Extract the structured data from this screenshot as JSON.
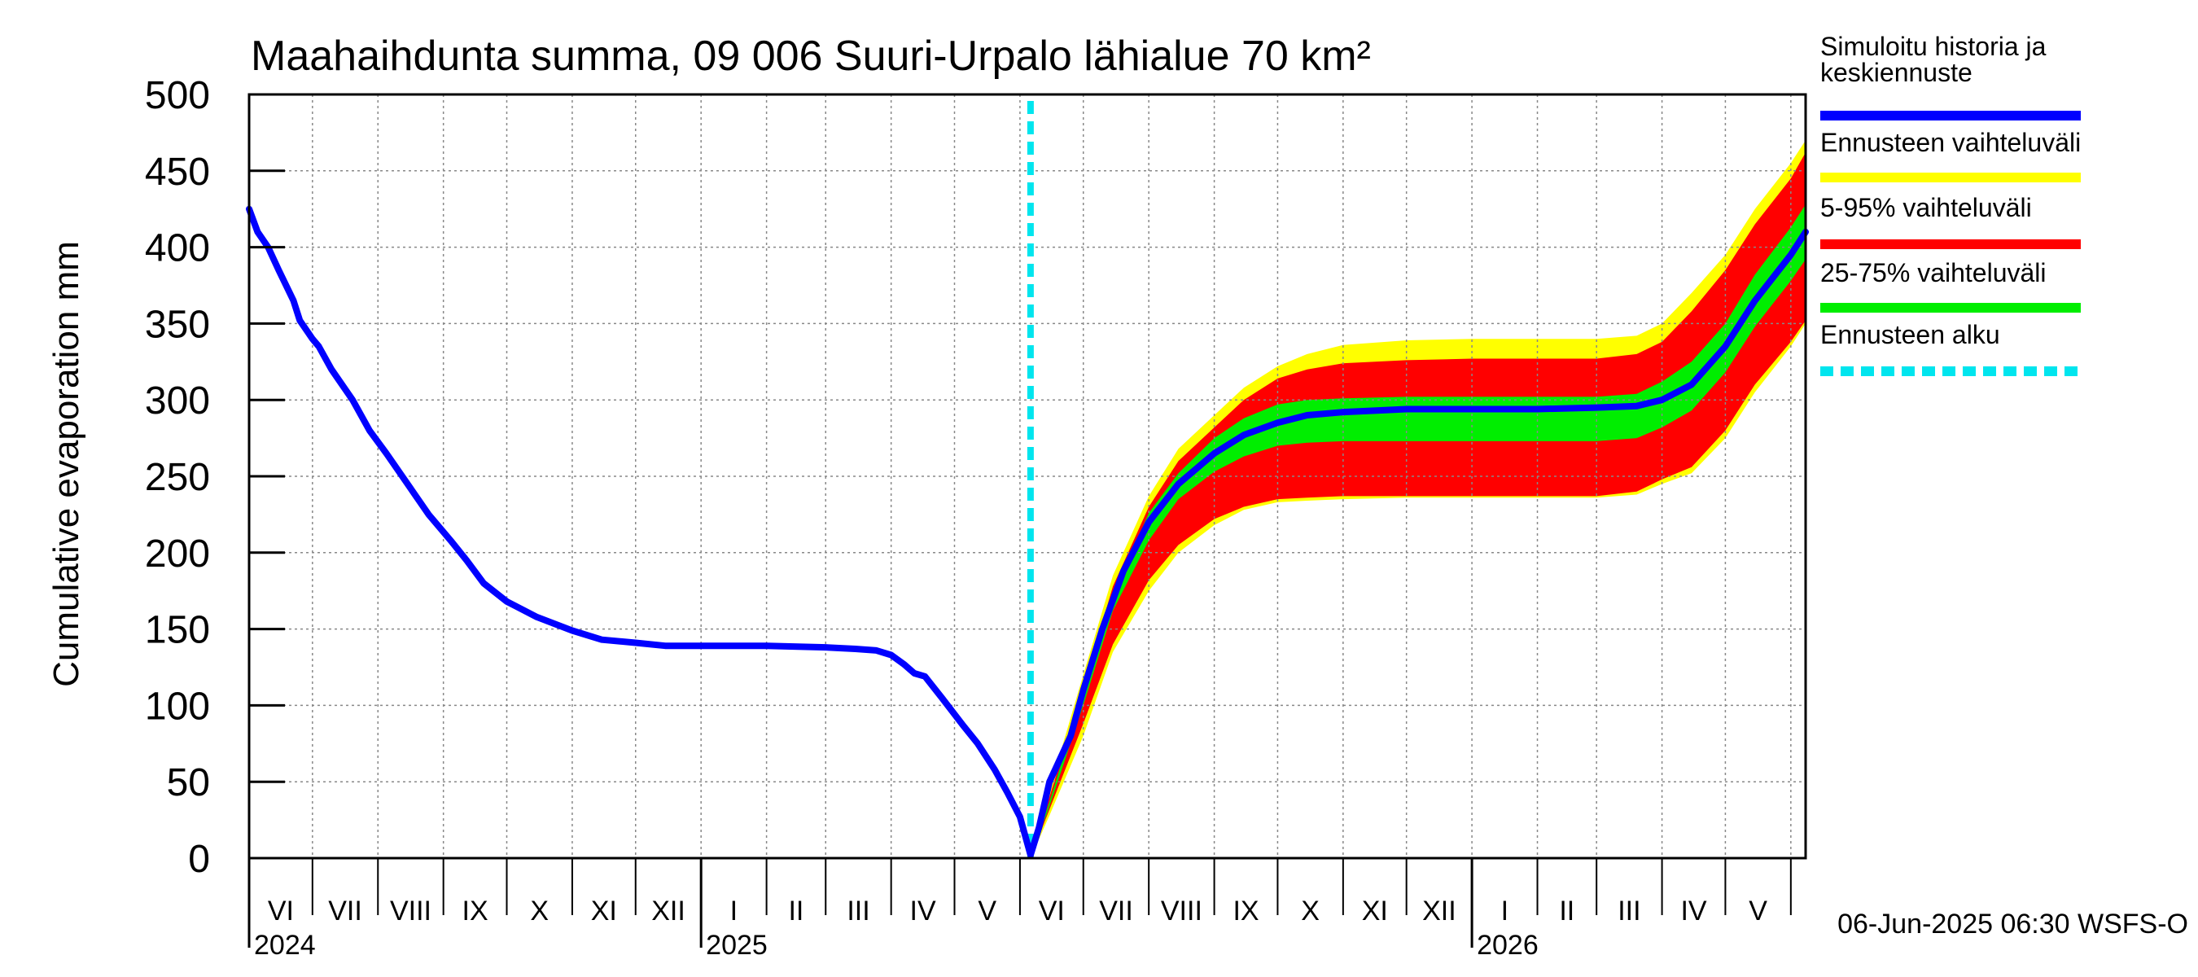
{
  "chart_data": {
    "type": "area",
    "title": "Maahaihdunta summa, 09 006 Suuri-Urpalo lähialue 70 km²",
    "ylabel": "Cumulative evaporation   mm",
    "ylim": [
      0,
      500
    ],
    "y_ticks": [
      0,
      50,
      100,
      150,
      200,
      250,
      300,
      350,
      400,
      450,
      500
    ],
    "grid": true,
    "legend_position": "right",
    "x_range": [
      "2024-06-01",
      "2026-06-08"
    ],
    "forecast_start": "2025-06-06",
    "month_labels": [
      {
        "label": "VI",
        "date": "2024-06-01"
      },
      {
        "label": "VII",
        "date": "2024-07-01"
      },
      {
        "label": "VIII",
        "date": "2024-08-01"
      },
      {
        "label": "IX",
        "date": "2024-09-01"
      },
      {
        "label": "X",
        "date": "2024-10-01"
      },
      {
        "label": "XI",
        "date": "2024-11-01"
      },
      {
        "label": "XII",
        "date": "2024-12-01"
      },
      {
        "label": "I",
        "date": "2025-01-01"
      },
      {
        "label": "II",
        "date": "2025-02-01"
      },
      {
        "label": "III",
        "date": "2025-03-01"
      },
      {
        "label": "IV",
        "date": "2025-04-01"
      },
      {
        "label": "V",
        "date": "2025-05-01"
      },
      {
        "label": "VI",
        "date": "2025-06-01"
      },
      {
        "label": "VII",
        "date": "2025-07-01"
      },
      {
        "label": "VIII",
        "date": "2025-08-01"
      },
      {
        "label": "IX",
        "date": "2025-09-01"
      },
      {
        "label": "X",
        "date": "2025-10-01"
      },
      {
        "label": "XI",
        "date": "2025-11-01"
      },
      {
        "label": "XII",
        "date": "2025-12-01"
      },
      {
        "label": "I",
        "date": "2026-01-01"
      },
      {
        "label": "II",
        "date": "2026-02-01"
      },
      {
        "label": "III",
        "date": "2026-03-01"
      },
      {
        "label": "IV",
        "date": "2026-04-01"
      },
      {
        "label": "V",
        "date": "2026-05-01"
      },
      {
        "label": "",
        "date": "2026-06-01"
      }
    ],
    "year_labels": [
      {
        "label": "2024",
        "date": "2024-06-01"
      },
      {
        "label": "2025",
        "date": "2025-01-01"
      },
      {
        "label": "2026",
        "date": "2026-01-01"
      }
    ],
    "forecast_dates": [
      "2025-06-06",
      "2025-06-15",
      "2025-07-01",
      "2025-07-15",
      "2025-08-01",
      "2025-08-15",
      "2025-09-01",
      "2025-09-15",
      "2025-10-01",
      "2025-10-15",
      "2025-11-01",
      "2025-12-01",
      "2026-01-01",
      "2026-02-01",
      "2026-03-01",
      "2026-03-20",
      "2026-04-01",
      "2026-04-15",
      "2026-05-01",
      "2026-05-15",
      "2026-06-01",
      "2026-06-08"
    ],
    "series": [
      {
        "name": "Simuloitu historia ja keskiennuste",
        "color": "#0000ff",
        "role": "median",
        "points": [
          [
            "2024-06-01",
            425
          ],
          [
            "2024-06-05",
            410
          ],
          [
            "2024-06-10",
            400
          ],
          [
            "2024-06-15",
            385
          ],
          [
            "2024-06-22",
            365
          ],
          [
            "2024-06-25",
            352
          ],
          [
            "2024-07-01",
            340
          ],
          [
            "2024-07-04",
            335
          ],
          [
            "2024-07-10",
            320
          ],
          [
            "2024-07-20",
            300
          ],
          [
            "2024-07-28",
            280
          ],
          [
            "2024-08-05",
            265
          ],
          [
            "2024-08-15",
            245
          ],
          [
            "2024-08-25",
            225
          ],
          [
            "2024-09-05",
            207
          ],
          [
            "2024-09-12",
            195
          ],
          [
            "2024-09-20",
            180
          ],
          [
            "2024-10-01",
            168
          ],
          [
            "2024-10-15",
            158
          ],
          [
            "2024-11-01",
            149
          ],
          [
            "2024-11-15",
            143
          ],
          [
            "2024-12-01",
            141
          ],
          [
            "2024-12-15",
            139
          ],
          [
            "2025-01-01",
            139
          ],
          [
            "2025-02-01",
            139
          ],
          [
            "2025-03-01",
            138
          ],
          [
            "2025-03-15",
            137
          ],
          [
            "2025-03-25",
            136
          ],
          [
            "2025-04-01",
            133
          ],
          [
            "2025-04-07",
            127
          ],
          [
            "2025-04-12",
            121
          ],
          [
            "2025-04-17",
            119
          ],
          [
            "2025-04-25",
            105
          ],
          [
            "2025-05-05",
            87
          ],
          [
            "2025-05-12",
            75
          ],
          [
            "2025-05-20",
            58
          ],
          [
            "2025-05-26",
            43
          ],
          [
            "2025-06-01",
            27
          ],
          [
            "2025-06-06",
            2
          ],
          [
            "2025-06-10",
            20
          ],
          [
            "2025-06-15",
            50
          ],
          [
            "2025-06-25",
            80
          ],
          [
            "2025-07-01",
            110
          ],
          [
            "2025-07-10",
            150
          ],
          [
            "2025-07-20",
            188
          ],
          [
            "2025-08-01",
            220
          ],
          [
            "2025-08-15",
            245
          ],
          [
            "2025-09-01",
            265
          ],
          [
            "2025-09-15",
            277
          ],
          [
            "2025-10-01",
            285
          ],
          [
            "2025-10-15",
            290
          ],
          [
            "2025-11-01",
            292
          ],
          [
            "2025-12-01",
            294
          ],
          [
            "2026-01-01",
            294
          ],
          [
            "2026-02-01",
            294
          ],
          [
            "2026-03-01",
            295
          ],
          [
            "2026-03-20",
            296
          ],
          [
            "2026-04-01",
            300
          ],
          [
            "2026-04-15",
            310
          ],
          [
            "2026-05-01",
            335
          ],
          [
            "2026-05-15",
            365
          ],
          [
            "2026-06-01",
            395
          ],
          [
            "2026-06-08",
            410
          ]
        ]
      },
      {
        "name": "Ennusteen vaihteluväli",
        "color": "#ffff00",
        "role": "band",
        "lower": [
          0,
          28,
          80,
          135,
          175,
          200,
          218,
          228,
          233,
          234,
          235,
          236,
          236,
          236,
          236,
          238,
          245,
          252,
          275,
          305,
          335,
          350
        ],
        "upper": [
          0,
          45,
          120,
          185,
          237,
          268,
          290,
          308,
          322,
          330,
          336,
          339,
          340,
          340,
          340,
          342,
          350,
          370,
          395,
          425,
          455,
          470
        ]
      },
      {
        "name": "5-95% vaihteluväli",
        "color": "#ff0000",
        "role": "band",
        "lower": [
          0,
          32,
          88,
          140,
          182,
          205,
          222,
          230,
          235,
          236,
          237,
          237,
          237,
          237,
          237,
          240,
          248,
          256,
          280,
          310,
          338,
          352
        ],
        "upper": [
          0,
          40,
          112,
          178,
          230,
          260,
          282,
          300,
          314,
          320,
          324,
          326,
          327,
          327,
          327,
          330,
          338,
          358,
          385,
          415,
          445,
          462
        ]
      },
      {
        "name": "25-75% vaihteluväli",
        "color": "#00ee00",
        "role": "band",
        "lower": [
          0,
          34,
          100,
          162,
          208,
          235,
          253,
          263,
          270,
          272,
          273,
          273,
          273,
          273,
          273,
          275,
          282,
          293,
          318,
          348,
          378,
          392
        ],
        "upper": [
          0,
          37,
          108,
          172,
          226,
          252,
          275,
          288,
          297,
          300,
          301,
          302,
          302,
          302,
          302,
          304,
          312,
          325,
          350,
          382,
          413,
          428
        ]
      },
      {
        "name": "Ennusteen alku",
        "color": "#00e5ee",
        "role": "vline"
      }
    ],
    "footer": "06-Jun-2025 06:30 WSFS-O"
  }
}
